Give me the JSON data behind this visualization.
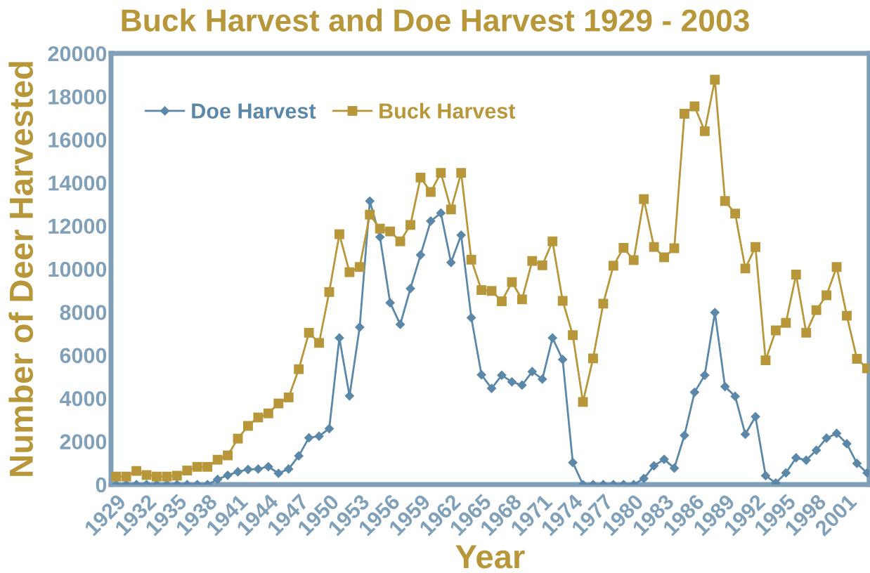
{
  "chart_data": {
    "type": "line",
    "title": "Buck Harvest and Doe Harvest 1929 - 2003",
    "xlabel": "Year",
    "ylabel": "Number of Deer Harvested",
    "x": [
      1929,
      1930,
      1931,
      1932,
      1933,
      1934,
      1935,
      1936,
      1937,
      1938,
      1939,
      1940,
      1941,
      1942,
      1943,
      1944,
      1945,
      1946,
      1947,
      1948,
      1949,
      1950,
      1951,
      1952,
      1953,
      1954,
      1955,
      1956,
      1957,
      1958,
      1959,
      1960,
      1961,
      1962,
      1963,
      1964,
      1965,
      1966,
      1967,
      1968,
      1969,
      1970,
      1971,
      1972,
      1973,
      1974,
      1975,
      1976,
      1977,
      1978,
      1979,
      1980,
      1981,
      1982,
      1983,
      1984,
      1985,
      1986,
      1987,
      1988,
      1989,
      1990,
      1991,
      1992,
      1993,
      1994,
      1995,
      1996,
      1997,
      1998,
      1999,
      2000,
      2001,
      2002,
      2003
    ],
    "series": [
      {
        "name": "Doe Harvest",
        "color": "#5b87a8",
        "marker": "diamond",
        "values": [
          0,
          0,
          0,
          0,
          0,
          0,
          0,
          0,
          0,
          0,
          240,
          430,
          590,
          700,
          720,
          830,
          520,
          720,
          1330,
          2170,
          2240,
          2590,
          6800,
          4110,
          7300,
          13150,
          11480,
          8430,
          7430,
          9090,
          10650,
          12220,
          12590,
          10300,
          11570,
          7740,
          5090,
          4460,
          5070,
          4760,
          4610,
          5240,
          4890,
          6800,
          5800,
          1020,
          0,
          0,
          0,
          0,
          0,
          0,
          280,
          870,
          1170,
          760,
          2280,
          4280,
          5070,
          7980,
          4540,
          4090,
          2330,
          3150,
          410,
          70,
          540,
          1240,
          1130,
          1590,
          2150,
          2370,
          1890,
          980,
          540
        ]
      },
      {
        "name": "Buck Harvest",
        "color": "#b8973a",
        "marker": "square",
        "values": [
          370,
          370,
          630,
          440,
          370,
          370,
          410,
          650,
          820,
          820,
          1150,
          1350,
          2130,
          2720,
          3110,
          3300,
          3760,
          4040,
          5350,
          7040,
          6570,
          8930,
          11610,
          9850,
          10090,
          12520,
          11870,
          11740,
          11280,
          12040,
          14240,
          13570,
          14460,
          12760,
          14460,
          10430,
          9020,
          8980,
          8500,
          9390,
          8590,
          10370,
          10170,
          11280,
          8520,
          6930,
          3830,
          5850,
          8390,
          10150,
          10980,
          10410,
          13240,
          11020,
          10540,
          10960,
          17200,
          17540,
          16390,
          18780,
          13150,
          12570,
          10020,
          11020,
          5760,
          7150,
          7500,
          9740,
          7040,
          8090,
          8780,
          10090,
          7830,
          5830,
          5390
        ]
      }
    ],
    "xlim": [
      1928.5,
      2003.2
    ],
    "xticks": [
      1929,
      1932,
      1935,
      1938,
      1941,
      1944,
      1947,
      1950,
      1953,
      1956,
      1959,
      1962,
      1965,
      1968,
      1971,
      1974,
      1977,
      1980,
      1983,
      1986,
      1989,
      1992,
      1995,
      1998,
      2001
    ],
    "ylim": [
      0,
      20000
    ],
    "yticks": [
      0,
      2000,
      4000,
      6000,
      8000,
      10000,
      12000,
      14000,
      16000,
      18000,
      20000
    ],
    "grid": false,
    "legend": "top left",
    "line_style": "solid"
  }
}
